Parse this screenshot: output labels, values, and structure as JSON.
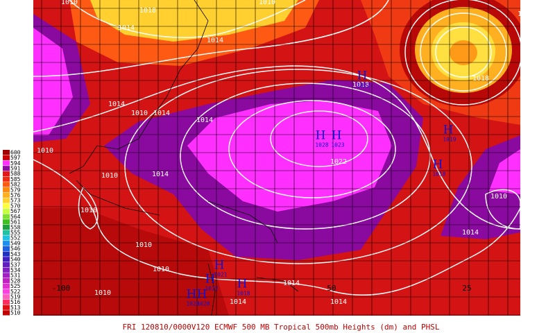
{
  "caption": "FRI 120810/0000V120  ECMWF  500 MB Tropical 500mb Heights (dm) and PHSL",
  "legend": {
    "levels": [
      600,
      597,
      594,
      591,
      588,
      585,
      582,
      579,
      576,
      573,
      570,
      567,
      564,
      561,
      558,
      555,
      552,
      549,
      546,
      543,
      540,
      537,
      534,
      531,
      528,
      525,
      522,
      519,
      516,
      513,
      510
    ],
    "colors": [
      "#a00000",
      "#c80000",
      "#ff30ff",
      "#8a0aa0",
      "#e01818",
      "#f02a10",
      "#ff5a10",
      "#ff8a10",
      "#ffb020",
      "#ffd030",
      "#ffff40",
      "#c8ff40",
      "#80e030",
      "#40c020",
      "#20a040",
      "#20c0a0",
      "#20c0e0",
      "#2090f0",
      "#2060e0",
      "#2030c0",
      "#4020c0",
      "#6020c0",
      "#8020c0",
      "#a020c0",
      "#c020c0",
      "#e030d0",
      "#ff40e0",
      "#ff60c0",
      "#ff3060",
      "#e01010",
      "#c00000"
    ]
  },
  "isobar_labels": [
    "1010",
    "1018",
    "1014",
    "1010",
    "1014",
    "1014",
    "1018",
    "1014",
    "1010",
    "1014",
    "1014",
    "1018",
    "1022",
    "1010",
    "1010",
    "1010",
    "1014",
    "1010",
    "1010",
    "1010",
    "1014",
    "1014",
    "1014",
    "1014",
    "1010"
  ],
  "highs": [
    {
      "symbol": "H",
      "pressure": "1022"
    },
    {
      "symbol": "H",
      "pressure": "1028"
    },
    {
      "symbol": "H",
      "pressure": "1023"
    },
    {
      "symbol": "H",
      "pressure": "1019"
    },
    {
      "symbol": "H",
      "pressure": "1018"
    },
    {
      "symbol": "H",
      "pressure": "1021"
    },
    {
      "symbol": "H",
      "pressure": "1022"
    },
    {
      "symbol": "H",
      "pressure": "1020"
    },
    {
      "symbol": "H",
      "pressure": "1020"
    },
    {
      "symbol": "H",
      "pressure": "1018"
    }
  ],
  "longitude_labels": [
    "-100",
    "50",
    "25"
  ]
}
